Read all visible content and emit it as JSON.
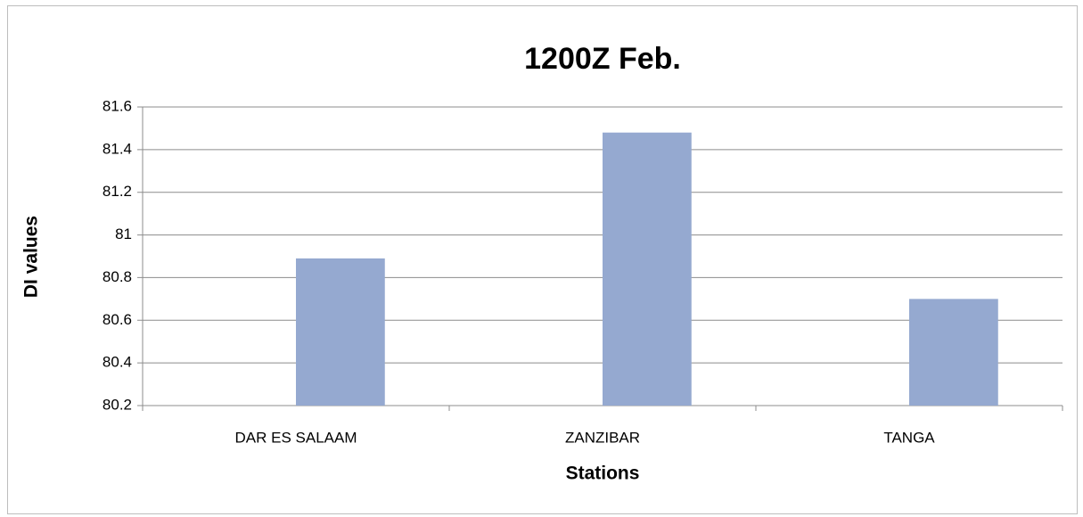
{
  "chart_data": {
    "type": "bar",
    "title": "1200Z Feb.",
    "x_label": "Stations",
    "y_label": "DI values",
    "categories": [
      "DAR ES SALAAM",
      "ZANZIBAR",
      "TANGA"
    ],
    "values": [
      80.89,
      81.48,
      80.7
    ],
    "color": "#95a9d0",
    "ylim": [
      80.2,
      81.6
    ],
    "yticks": [
      80.2,
      80.4,
      80.6,
      80.8,
      81,
      81.2,
      81.4,
      81.6
    ],
    "grid": true
  }
}
